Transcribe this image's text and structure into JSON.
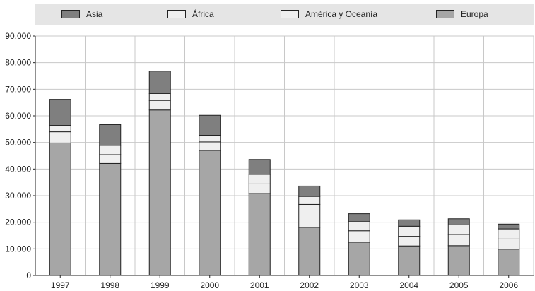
{
  "chart_data": {
    "type": "bar",
    "stacked": true,
    "categories": [
      "1997",
      "1998",
      "1999",
      "2000",
      "2001",
      "2002",
      "2003",
      "2004",
      "2005",
      "2006"
    ],
    "series": [
      {
        "name": "Europa",
        "color": "#a6a6a6",
        "values": [
          49800,
          42100,
          62200,
          47000,
          30800,
          18100,
          12500,
          11100,
          11200,
          9900
        ]
      },
      {
        "name": "América y Oceanía",
        "color": "#efefef",
        "values": [
          4200,
          3300,
          3600,
          3200,
          3600,
          8600,
          4300,
          3600,
          4200,
          3800
        ]
      },
      {
        "name": "África",
        "color": "#efefef",
        "values": [
          2400,
          3500,
          2600,
          2500,
          3600,
          3000,
          3400,
          3800,
          3600,
          3800
        ]
      },
      {
        "name": "Asia",
        "color": "#7f7f7f",
        "values": [
          9800,
          7800,
          8400,
          7500,
          5600,
          3900,
          3000,
          2400,
          2300,
          1800
        ]
      }
    ],
    "legend_order": [
      "Asia",
      "África",
      "América y Oceanía",
      "Europa"
    ],
    "yticks": [
      "0",
      "10.000",
      "20.000",
      "30.000",
      "40.000",
      "50.000",
      "60.000",
      "70.000",
      "80.000",
      "90.000"
    ],
    "ylim": [
      0,
      90000
    ],
    "grid": true,
    "legend_position": "top"
  }
}
